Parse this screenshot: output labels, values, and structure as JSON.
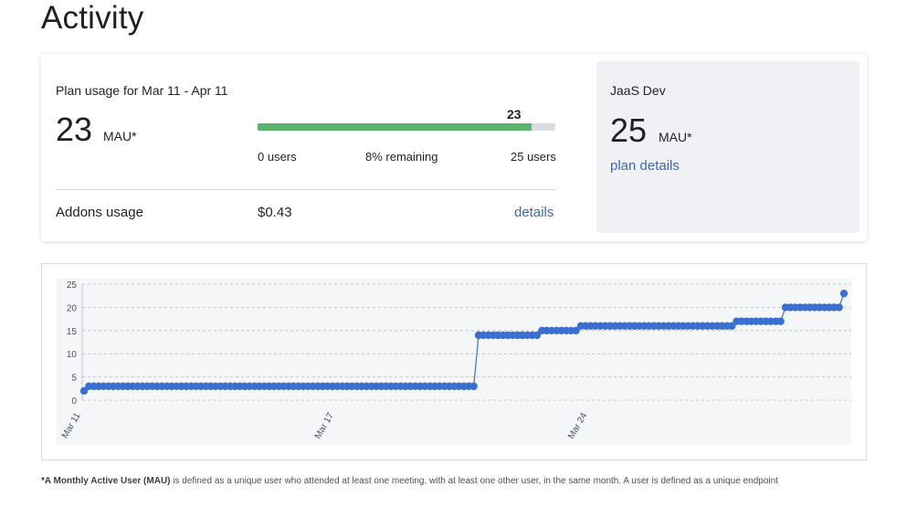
{
  "page": {
    "title": "Activity"
  },
  "usage": {
    "plan_label": "Plan usage for Mar 11 - Apr 11",
    "mau_value": "23",
    "mau_unit": "MAU*",
    "bar_current": "23",
    "bar_fraction": 0.92,
    "bar_min_label": "0 users",
    "bar_remaining_label": "8% remaining",
    "bar_max_label": "25 users",
    "addons_label": "Addons usage",
    "addons_value": "$0.43",
    "addons_link": "details"
  },
  "plan": {
    "name": "JaaS Dev",
    "limit": "25",
    "unit": "MAU*",
    "link": "plan details"
  },
  "colors": {
    "accent": "#3d6ab5",
    "progress": "#5cb36c",
    "line": "#3a6fd0"
  },
  "chart_data": {
    "type": "line",
    "ylim": [
      0,
      25
    ],
    "yticks": [
      0,
      5,
      10,
      15,
      20,
      25
    ],
    "grid": true,
    "x_tick_labels": [
      {
        "label": "Mar 11",
        "index": 0
      },
      {
        "label": "Mar 17",
        "index": 52
      },
      {
        "label": "Mar 24",
        "index": 104
      }
    ],
    "values": [
      2,
      3,
      3,
      3,
      3,
      3,
      3,
      3,
      3,
      3,
      3,
      3,
      3,
      3,
      3,
      3,
      3,
      3,
      3,
      3,
      3,
      3,
      3,
      3,
      3,
      3,
      3,
      3,
      3,
      3,
      3,
      3,
      3,
      3,
      3,
      3,
      3,
      3,
      3,
      3,
      3,
      3,
      3,
      3,
      3,
      3,
      3,
      3,
      3,
      3,
      3,
      3,
      3,
      3,
      3,
      3,
      3,
      3,
      3,
      3,
      3,
      3,
      3,
      3,
      3,
      3,
      3,
      3,
      3,
      3,
      3,
      3,
      3,
      3,
      3,
      3,
      3,
      3,
      3,
      3,
      3,
      14,
      14,
      14,
      14,
      14,
      14,
      14,
      14,
      14,
      14,
      14,
      14,
      14,
      15,
      15,
      15,
      15,
      15,
      15,
      15,
      15,
      16,
      16,
      16,
      16,
      16,
      16,
      16,
      16,
      16,
      16,
      16,
      16,
      16,
      16,
      16,
      16,
      16,
      16,
      16,
      16,
      16,
      16,
      16,
      16,
      16,
      16,
      16,
      16,
      16,
      16,
      16,
      16,
      17,
      17,
      17,
      17,
      17,
      17,
      17,
      17,
      17,
      17,
      20,
      20,
      20,
      20,
      20,
      20,
      20,
      20,
      20,
      20,
      20,
      20,
      23
    ]
  },
  "footnote": {
    "bold": "*A Monthly Active User (MAU)",
    "rest": " is defined as a unique user who attended at least one meeting, with at least one other user, in the same month. A user is defined as a unique endpoint"
  }
}
